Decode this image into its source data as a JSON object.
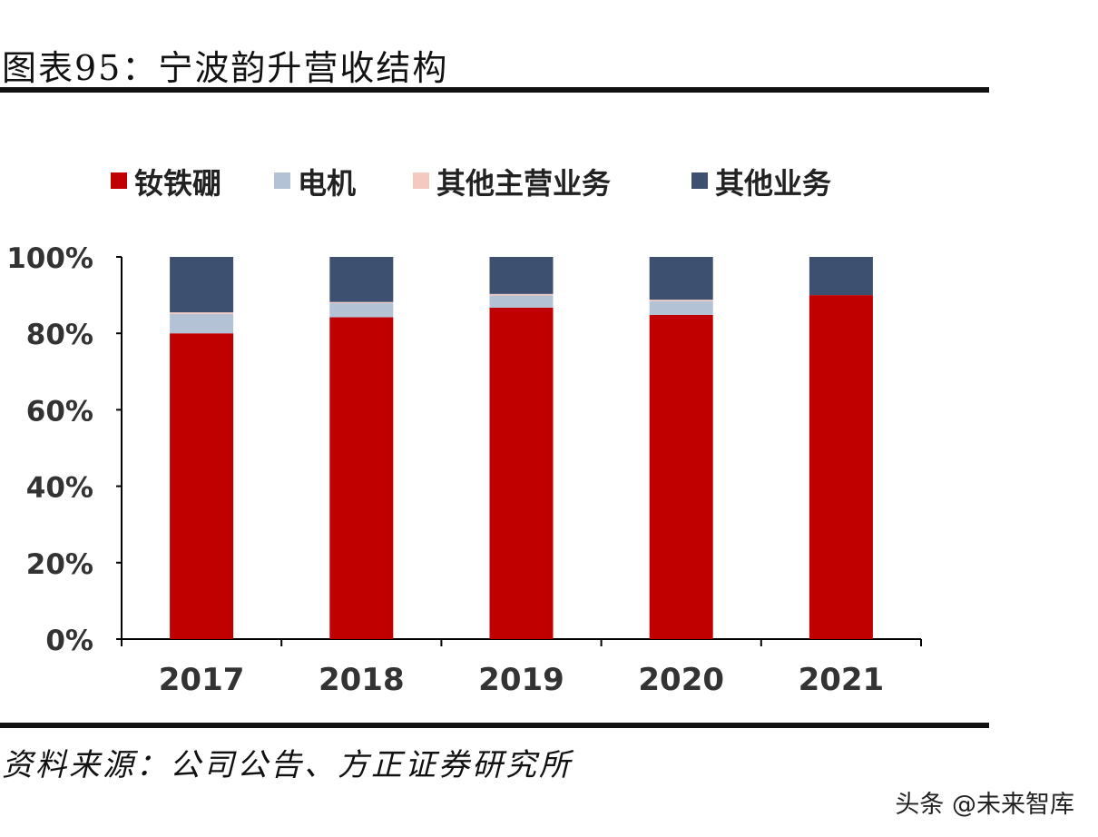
{
  "header": {
    "title": "图表95：宁波韵升营收结构"
  },
  "footer": {
    "source": "资料来源：公司公告、方正证券研究所",
    "watermark": "头条 @未来智库"
  },
  "chart_data": {
    "type": "bar",
    "stacked": true,
    "title": "",
    "categories": [
      "2017",
      "2018",
      "2019",
      "2020",
      "2021"
    ],
    "series": [
      {
        "name": "钕铁硼",
        "color": "#c00000",
        "values": [
          80.0,
          84.2,
          86.7,
          84.8,
          90.0
        ]
      },
      {
        "name": "电机",
        "color": "#b4c2d6",
        "values": [
          5.1,
          3.7,
          3.2,
          3.6,
          0
        ]
      },
      {
        "name": "其他主营业务",
        "color": "#f4c9c0",
        "values": [
          0.4,
          0.3,
          0.4,
          0.4,
          0
        ]
      },
      {
        "name": "其他业务",
        "color": "#3d5070",
        "values": [
          14.5,
          11.8,
          9.7,
          11.2,
          10.0
        ]
      }
    ],
    "ylim": [
      0,
      100
    ],
    "yticks": [
      "0%",
      "20%",
      "40%",
      "60%",
      "80%",
      "100%"
    ],
    "grid": false,
    "legend": "top"
  }
}
